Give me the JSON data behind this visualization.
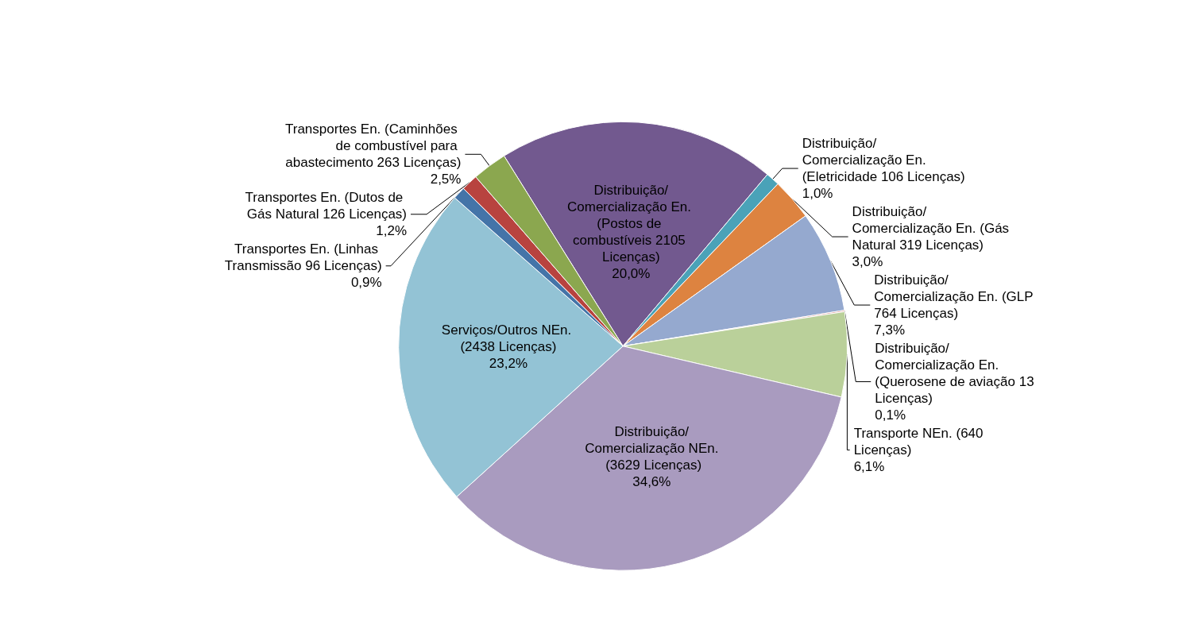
{
  "chart_data": {
    "type": "pie",
    "categories": [
      "Distribuição/Comercialização En. (Postos de combustíveis 2105 Licenças)",
      "Distribuição/Comercialização En. (Eletricidade 106 Licenças)",
      "Distribuição/Comercialização En. (Gás Natural 319 Licenças)",
      "Distribuição/Comercialização En. (GLP 764 Licenças)",
      "Distribuição/Comercialização En. (Querosene de aviação 13 Licenças)",
      "Transporte NEn. (640 Licenças)",
      "Distribuição/Comercialização NEn. (3629 Licenças)",
      "Serviços/Outros NEn. (2438 Licenças)",
      "Transportes En. (Linhas Transmissão 96 Licenças)",
      "Transportes En. (Dutos de Gás Natural 126 Licenças)",
      "Transportes En. (Caminhões de combustível para abastecimento 263 Licenças)"
    ],
    "values": [
      20.0,
      1.0,
      3.0,
      7.3,
      0.1,
      6.1,
      34.6,
      23.2,
      0.9,
      1.2,
      2.5
    ],
    "value_labels": [
      "20,0%",
      "1,0%",
      "3,0%",
      "7,3%",
      "0,1%",
      "6,1%",
      "34,6%",
      "23,2%",
      "0,9%",
      "1,2%",
      "2,5%"
    ],
    "colors": [
      "#72598f",
      "#4aa2b8",
      "#dd8340",
      "#95a9cf",
      "#d99694",
      "#bad09a",
      "#a99bbf",
      "#93c3d5",
      "#4474a8",
      "#b8433f",
      "#8ba74f"
    ],
    "legend": false
  }
}
